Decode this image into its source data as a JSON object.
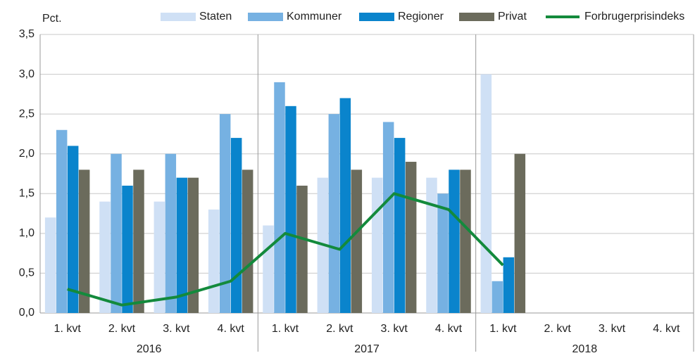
{
  "chart_data": {
    "type": "bar",
    "ylabel": "Pct.",
    "categories": [
      "1. kvt",
      "2. kvt",
      "3. kvt",
      "4. kvt",
      "1. kvt",
      "2. kvt",
      "3. kvt",
      "4. kvt",
      "1. kvt",
      "2. kvt",
      "3. kvt",
      "4. kvt"
    ],
    "groups": [
      "2016",
      "2017",
      "2018"
    ],
    "series": [
      {
        "name": "Staten",
        "color": "#cfe0f5",
        "values": [
          1.2,
          1.4,
          1.4,
          1.3,
          1.1,
          1.7,
          1.7,
          1.7,
          3.0,
          null,
          null,
          null
        ]
      },
      {
        "name": "Kommuner",
        "color": "#76b1e2",
        "values": [
          2.3,
          2.0,
          2.0,
          2.5,
          2.9,
          2.5,
          2.4,
          1.5,
          0.4,
          null,
          null,
          null
        ]
      },
      {
        "name": "Regioner",
        "color": "#0a84cc",
        "values": [
          2.1,
          1.6,
          1.7,
          2.2,
          2.6,
          2.7,
          2.2,
          1.8,
          0.7,
          null,
          null,
          null
        ]
      },
      {
        "name": "Privat",
        "color": "#6b6b5c",
        "values": [
          1.8,
          1.8,
          1.7,
          1.8,
          1.6,
          1.8,
          1.9,
          1.8,
          2.0,
          null,
          null,
          null
        ]
      },
      {
        "name": "Forbrugerprisindeks",
        "type": "line",
        "color": "#138a3c",
        "values": [
          0.3,
          0.1,
          0.2,
          0.4,
          1.0,
          0.8,
          1.5,
          1.3,
          0.6,
          null,
          null,
          null
        ]
      }
    ],
    "ylim": [
      0,
      3.5
    ],
    "yticks": [
      {
        "value": 0,
        "label": "0,0"
      },
      {
        "value": 0.5,
        "label": "0,5"
      },
      {
        "value": 1,
        "label": "1,0"
      },
      {
        "value": 1.5,
        "label": "1,5"
      },
      {
        "value": 2,
        "label": "2,0"
      },
      {
        "value": 2.5,
        "label": "2,5"
      },
      {
        "value": 3,
        "label": "3,0"
      },
      {
        "value": 3.5,
        "label": "3,5"
      }
    ],
    "grid": true,
    "legend": "top"
  }
}
